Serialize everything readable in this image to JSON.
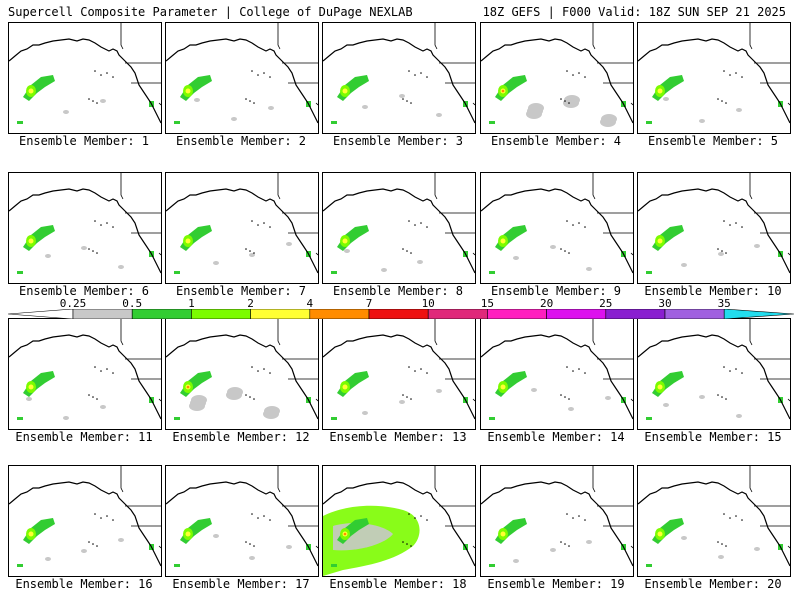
{
  "header": {
    "title": "Supercell Composite Parameter | College of DuPage NEXLAB",
    "run_info": "18Z GEFS | F000 Valid: 18Z SUN SEP 21 2025"
  },
  "colorbar": {
    "ticks": [
      "0.25",
      "0.5",
      "1",
      "2",
      "4",
      "7",
      "10",
      "15",
      "20",
      "25",
      "30",
      "35"
    ],
    "colors": [
      "#ffffff",
      "#c8c8c8",
      "#32cd32",
      "#7cfc00",
      "#ffff33",
      "#ff8c00",
      "#ee1111",
      "#e0287a",
      "#ff1fbf",
      "#dd11ee",
      "#8a1fd0",
      "#a060e0",
      "#22ddee"
    ]
  },
  "panels": [
    {
      "label": "Ensemble Member: 1",
      "intensity": "low"
    },
    {
      "label": "Ensemble Member: 2",
      "intensity": "low"
    },
    {
      "label": "Ensemble Member: 3",
      "intensity": "low"
    },
    {
      "label": "Ensemble Member: 4",
      "intensity": "medium"
    },
    {
      "label": "Ensemble Member: 5",
      "intensity": "low"
    },
    {
      "label": "Ensemble Member: 6",
      "intensity": "low"
    },
    {
      "label": "Ensemble Member: 7",
      "intensity": "low"
    },
    {
      "label": "Ensemble Member: 8",
      "intensity": "low"
    },
    {
      "label": "Ensemble Member: 9",
      "intensity": "low"
    },
    {
      "label": "Ensemble Member: 10",
      "intensity": "low"
    },
    {
      "label": "Ensemble Member: 11",
      "intensity": "low"
    },
    {
      "label": "Ensemble Member: 12",
      "intensity": "medium"
    },
    {
      "label": "Ensemble Member: 13",
      "intensity": "low"
    },
    {
      "label": "Ensemble Member: 14",
      "intensity": "low"
    },
    {
      "label": "Ensemble Member: 15",
      "intensity": "low"
    },
    {
      "label": "Ensemble Member: 16",
      "intensity": "low"
    },
    {
      "label": "Ensemble Member: 17",
      "intensity": "low"
    },
    {
      "label": "Ensemble Member: 18",
      "intensity": "high"
    },
    {
      "label": "Ensemble Member: 19",
      "intensity": "low"
    },
    {
      "label": "Ensemble Member: 20",
      "intensity": "low"
    }
  ]
}
